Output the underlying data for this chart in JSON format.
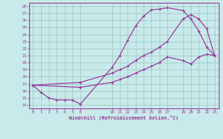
{
  "xlabel": "Windchill (Refroidissement éolien,°C)",
  "bg_color": "#c8eaea",
  "grid_color": "#a0c8c8",
  "line_color": "#993399",
  "xlim": [
    -0.5,
    23.5
  ],
  "ylim": [
    13.5,
    28.5
  ],
  "ytick_vals": [
    14,
    15,
    16,
    17,
    18,
    19,
    20,
    21,
    22,
    23,
    24,
    25,
    26,
    27,
    28
  ],
  "xtick_vals": [
    0,
    1,
    2,
    3,
    4,
    5,
    6,
    10,
    11,
    12,
    13,
    14,
    15,
    16,
    17,
    19,
    20,
    21,
    22,
    23
  ],
  "line1_x": [
    0,
    1,
    2,
    3,
    4,
    5,
    6,
    10,
    11,
    12,
    13,
    14,
    15,
    16,
    17,
    19,
    20,
    21,
    22,
    23
  ],
  "line1_y": [
    16.8,
    15.8,
    15.0,
    14.7,
    14.7,
    14.7,
    14.1,
    19.3,
    21.0,
    23.2,
    25.2,
    26.6,
    27.5,
    27.6,
    27.8,
    27.4,
    26.2,
    24.5,
    22.2,
    21.0
  ],
  "line2_x": [
    0,
    6,
    10,
    11,
    12,
    13,
    14,
    15,
    16,
    17,
    19,
    20,
    21,
    22,
    23
  ],
  "line2_y": [
    16.8,
    17.2,
    18.5,
    19.0,
    19.5,
    20.3,
    21.0,
    21.5,
    22.2,
    23.0,
    26.2,
    26.8,
    26.2,
    24.8,
    21.0
  ],
  "line3_x": [
    0,
    6,
    10,
    11,
    12,
    13,
    14,
    15,
    16,
    17,
    19,
    20,
    21,
    22,
    23
  ],
  "line3_y": [
    16.8,
    16.5,
    17.2,
    17.6,
    18.0,
    18.5,
    19.0,
    19.5,
    20.0,
    20.8,
    20.3,
    19.8,
    20.8,
    21.2,
    21.0
  ]
}
